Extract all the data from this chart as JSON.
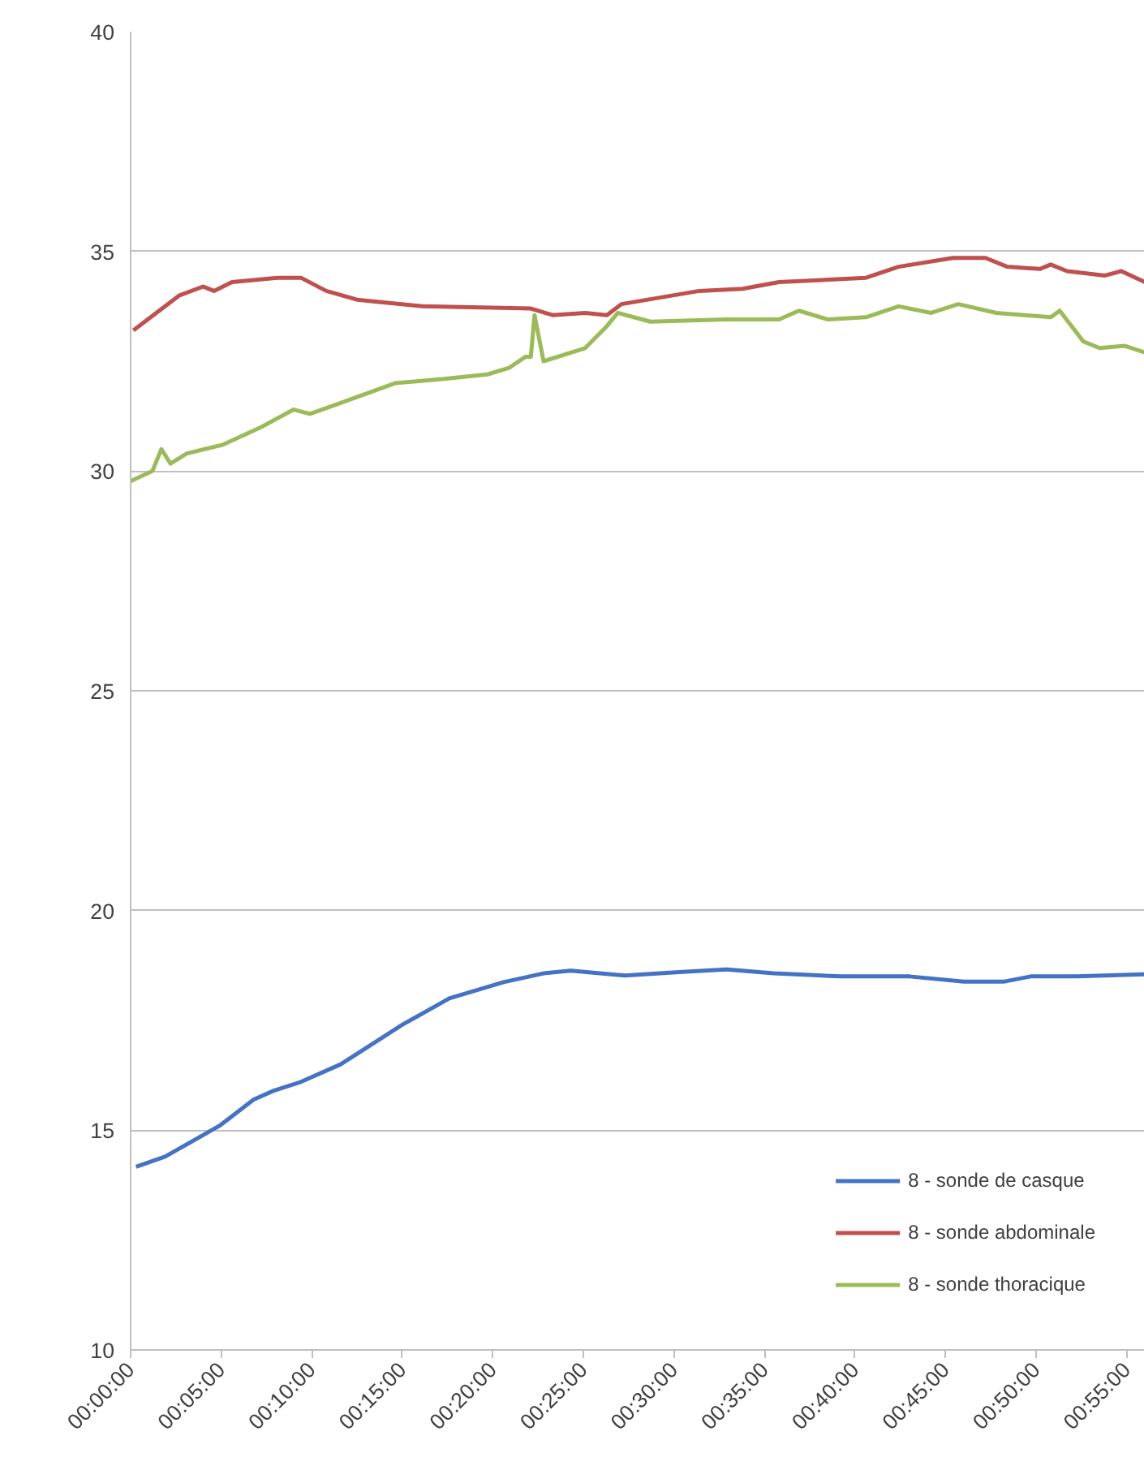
{
  "chart_data": {
    "type": "line",
    "xlim": [
      0,
      0.9333
    ],
    "ylim": [
      10,
      40
    ],
    "xticks": [
      {
        "value": 0,
        "label": "00:00:00"
      },
      {
        "value": 0.083333,
        "label": "00:05:00"
      },
      {
        "value": 0.166667,
        "label": "00:10:00"
      },
      {
        "value": 0.25,
        "label": "00:15:00"
      },
      {
        "value": 0.333333,
        "label": "00:20:00"
      },
      {
        "value": 0.416667,
        "label": "00:25:00"
      },
      {
        "value": 0.5,
        "label": "00:30:00"
      },
      {
        "value": 0.583333,
        "label": "00:35:00"
      },
      {
        "value": 0.666667,
        "label": "00:40:00"
      },
      {
        "value": 0.75,
        "label": "00:45:00"
      },
      {
        "value": 0.833333,
        "label": "00:50:00"
      },
      {
        "value": 0.916667,
        "label": "00:55:00"
      }
    ],
    "yticks": [
      10,
      15,
      20,
      25,
      30,
      35,
      40
    ],
    "grid": "y",
    "legend": "bottom right",
    "marker": "none",
    "line_style": "solid",
    "series": [
      {
        "name": "8 - sonde de casque",
        "color": "#4472c4",
        "x": [
          0.005,
          0.0317,
          0.0817,
          0.1133,
          0.1317,
          0.1567,
          0.1933,
          0.25,
          0.2933,
          0.3433,
          0.38,
          0.405,
          0.455,
          0.505,
          0.5483,
          0.5917,
          0.6533,
          0.7167,
          0.7667,
          0.8033,
          0.8283,
          0.8717,
          0.9333
        ],
        "values": [
          14.17,
          14.4,
          15.1,
          15.7,
          15.9,
          16.1,
          16.5,
          17.4,
          18.0,
          18.37,
          18.57,
          18.63,
          18.52,
          18.6,
          18.66,
          18.57,
          18.5,
          18.5,
          18.38,
          18.38,
          18.5,
          18.5,
          18.55
        ]
      },
      {
        "name": "8 - sonde abdominale",
        "color": "#c0504d",
        "x": [
          0.0025,
          0.045,
          0.0667,
          0.0767,
          0.0933,
          0.135,
          0.1567,
          0.18,
          0.2083,
          0.2683,
          0.3683,
          0.3883,
          0.4183,
          0.4383,
          0.4517,
          0.5233,
          0.5633,
          0.5967,
          0.6767,
          0.7067,
          0.7567,
          0.7867,
          0.8067,
          0.8367,
          0.8467,
          0.8617,
          0.8967,
          0.9117,
          0.9333
        ],
        "values": [
          33.2,
          34.0,
          34.2,
          34.1,
          34.3,
          34.4,
          34.4,
          34.1,
          33.9,
          33.75,
          33.7,
          33.55,
          33.6,
          33.55,
          33.8,
          34.1,
          34.15,
          34.3,
          34.4,
          34.65,
          34.85,
          34.85,
          34.65,
          34.6,
          34.7,
          34.55,
          34.45,
          34.55,
          34.3
        ]
      },
      {
        "name": "8 - sonde thoracique",
        "color": "#9bbb59",
        "x": [
          0,
          0.02,
          0.0283,
          0.0367,
          0.0517,
          0.085,
          0.12,
          0.15,
          0.165,
          0.1933,
          0.2433,
          0.2883,
          0.3283,
          0.3483,
          0.3633,
          0.3683,
          0.3717,
          0.38,
          0.4183,
          0.4383,
          0.4483,
          0.4783,
          0.5483,
          0.5967,
          0.615,
          0.6417,
          0.6767,
          0.7067,
          0.7367,
          0.7617,
          0.7967,
          0.8467,
          0.855,
          0.8767,
          0.8917,
          0.915,
          0.9333
        ],
        "values": [
          29.77,
          30.0,
          30.5,
          30.17,
          30.4,
          30.6,
          31.0,
          31.4,
          31.3,
          31.55,
          32.0,
          32.1,
          32.2,
          32.35,
          32.6,
          32.6,
          33.55,
          32.5,
          32.8,
          33.3,
          33.6,
          33.4,
          33.45,
          33.45,
          33.65,
          33.45,
          33.5,
          33.75,
          33.6,
          33.8,
          33.6,
          33.5,
          33.65,
          32.95,
          32.8,
          32.85,
          32.7
        ]
      }
    ]
  }
}
